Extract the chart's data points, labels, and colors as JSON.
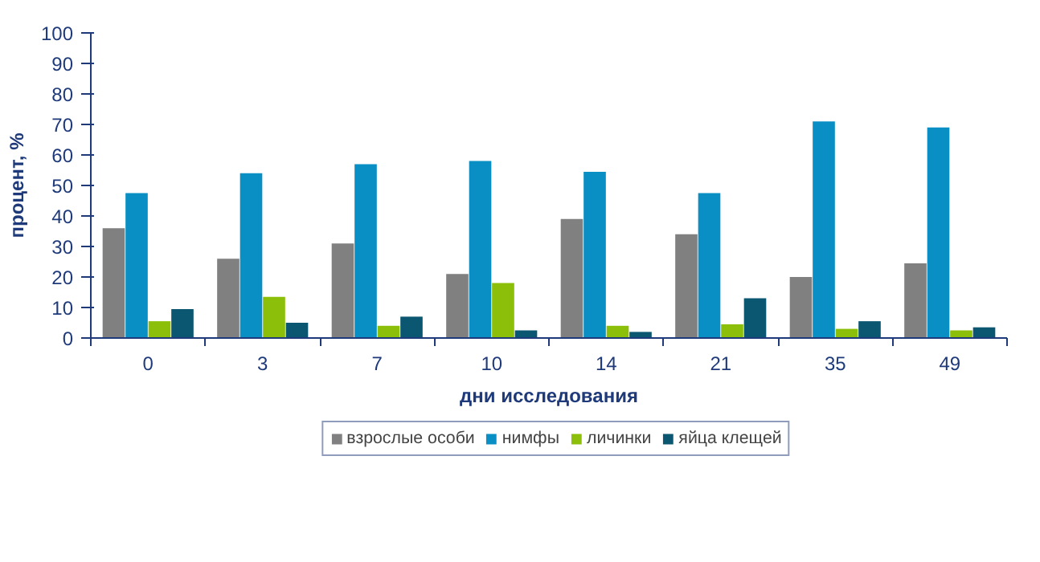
{
  "chart_data": {
    "type": "bar",
    "xlabel": "дни исследования",
    "ylabel": "процент, %",
    "categories": [
      "0",
      "3",
      "7",
      "10",
      "14",
      "21",
      "35",
      "49"
    ],
    "series": [
      {
        "name": "взрослые особи",
        "color": "#808080",
        "values": [
          36,
          26,
          31,
          21,
          39,
          34,
          20,
          24.5
        ]
      },
      {
        "name": "нимфы",
        "color": "#0a8fc4",
        "values": [
          47.5,
          54,
          57,
          58,
          54.5,
          47.5,
          71,
          69
        ]
      },
      {
        "name": "личинки",
        "color": "#8cbf0a",
        "values": [
          5.5,
          13.5,
          4,
          18,
          4,
          4.5,
          3,
          2.5
        ]
      },
      {
        "name": "яйца клещей",
        "color": "#0b5670",
        "values": [
          9.5,
          5,
          7,
          2.5,
          2,
          13,
          5.5,
          3.5
        ]
      }
    ],
    "ylim": [
      0,
      100
    ],
    "yticks": [
      0,
      10,
      20,
      30,
      40,
      50,
      60,
      70,
      80,
      90,
      100
    ],
    "grid": false,
    "legend": "bottom"
  }
}
